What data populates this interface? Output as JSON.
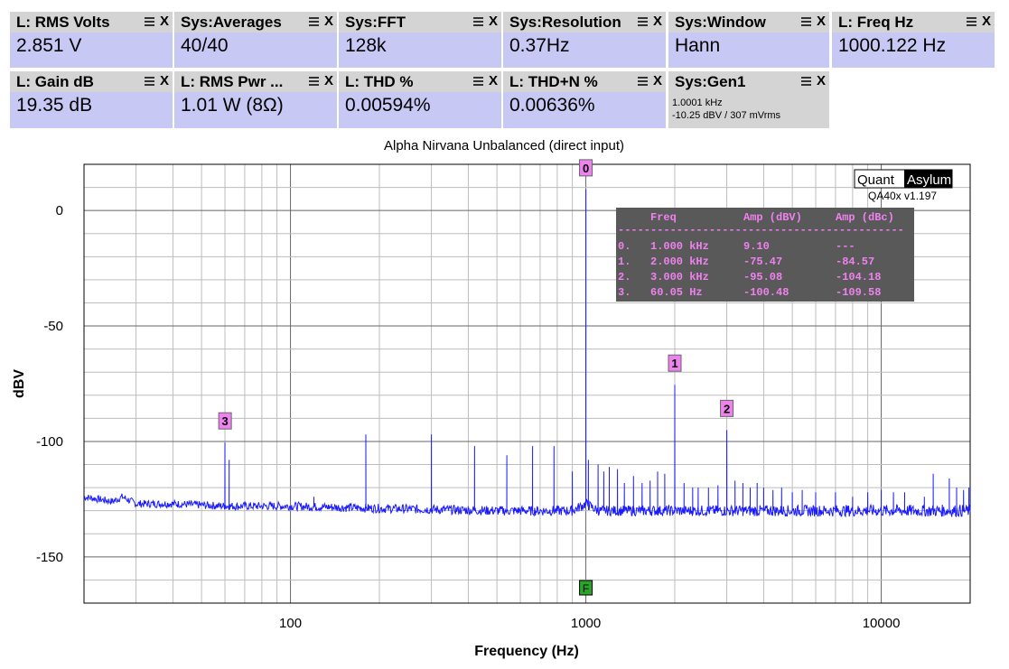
{
  "panels": [
    {
      "title": "L: RMS Volts",
      "value": "2.851 V"
    },
    {
      "title": "Sys:Averages",
      "value": "40/40"
    },
    {
      "title": "Sys:FFT",
      "value": "128k"
    },
    {
      "title": "Sys:Resolution",
      "value": "0.37Hz"
    },
    {
      "title": "Sys:Window",
      "value": "Hann"
    },
    {
      "title": "L: Freq Hz",
      "value": "1000.122 Hz"
    },
    {
      "title": "L: Gain dB",
      "value": "19.35 dB"
    },
    {
      "title": "L: RMS Pwr ...",
      "value": "1.01 W (8Ω)"
    },
    {
      "title": "L: THD %",
      "value": "0.00594%"
    },
    {
      "title": "L: THD+N %",
      "value": "0.00636%"
    },
    {
      "title": "Sys:Gen1",
      "line1": "1.0001 kHz",
      "line2": "-10.25 dBV  / 307 mVrms"
    }
  ],
  "panel_menu_icon": "hamburger-icon",
  "panel_close_icon": "close-icon",
  "panel_close_label": "X",
  "brand": {
    "left": "Quant",
    "right": "Asylum",
    "version": "QA40x v1.197"
  },
  "colors": {
    "trace": "#1a1aff",
    "marker": "#ee82ee",
    "panel_value": "#c8c8f5",
    "panel_header": "#d4d4d4",
    "table_bg": "#595959"
  },
  "chart_data": {
    "type": "line",
    "title": "Alpha Nirvana Unbalanced (direct input)",
    "xlabel": "Frequency (Hz)",
    "ylabel": "dBV",
    "xscale": "log",
    "xlim": [
      20,
      20000
    ],
    "ylim": [
      -170,
      20
    ],
    "xticks": [
      {
        "v": 100,
        "label": "100"
      },
      {
        "v": 1000,
        "label": "1000"
      },
      {
        "v": 10000,
        "label": "10000"
      }
    ],
    "yticks": [
      {
        "v": 0,
        "label": "0"
      },
      {
        "v": -50,
        "label": "-50"
      },
      {
        "v": -100,
        "label": "-100"
      },
      {
        "v": -150,
        "label": "-150"
      }
    ],
    "grid": true,
    "noise_floor": [
      [
        20,
        -124
      ],
      [
        25,
        -126
      ],
      [
        27,
        -124
      ],
      [
        30,
        -127
      ],
      [
        40,
        -127
      ],
      [
        60,
        -128
      ],
      [
        100,
        -128
      ],
      [
        200,
        -129
      ],
      [
        500,
        -130
      ],
      [
        900,
        -130
      ],
      [
        1000,
        -127
      ],
      [
        1100,
        -130
      ],
      [
        2000,
        -130
      ],
      [
        5000,
        -130
      ],
      [
        10000,
        -130
      ],
      [
        20000,
        -130
      ]
    ],
    "spurs": [
      [
        60,
        -100.5
      ],
      [
        62,
        -108
      ],
      [
        120,
        -124
      ],
      [
        180,
        -97
      ],
      [
        300,
        -97
      ],
      [
        420,
        -102
      ],
      [
        540,
        -106
      ],
      [
        660,
        -102
      ],
      [
        780,
        -102
      ],
      [
        900,
        -113
      ],
      [
        1000,
        9.1
      ],
      [
        1020,
        -108
      ],
      [
        1100,
        -110
      ],
      [
        1150,
        -113
      ],
      [
        1200,
        -111
      ],
      [
        1280,
        -112
      ],
      [
        1350,
        -118
      ],
      [
        1450,
        -115
      ],
      [
        1550,
        -118
      ],
      [
        1650,
        -117
      ],
      [
        1750,
        -113
      ],
      [
        1850,
        -114
      ],
      [
        2000,
        -75.47
      ],
      [
        2150,
        -118
      ],
      [
        2300,
        -120
      ],
      [
        2400,
        -120
      ],
      [
        2600,
        -120
      ],
      [
        2800,
        -119
      ],
      [
        3000,
        -95.08
      ],
      [
        3200,
        -117
      ],
      [
        3400,
        -118
      ],
      [
        3600,
        -120
      ],
      [
        3800,
        -118
      ],
      [
        4000,
        -120
      ],
      [
        4300,
        -121
      ],
      [
        4600,
        -120
      ],
      [
        5000,
        -122
      ],
      [
        5400,
        -121
      ],
      [
        6000,
        -122
      ],
      [
        7000,
        -122
      ],
      [
        8000,
        -124
      ],
      [
        9000,
        -122
      ],
      [
        10000,
        -121
      ],
      [
        11000,
        -122
      ],
      [
        12000,
        -122
      ],
      [
        14000,
        -124
      ],
      [
        15000,
        -114
      ],
      [
        17000,
        -116
      ],
      [
        18000,
        -120
      ],
      [
        19000,
        -121
      ],
      [
        19800,
        -120
      ]
    ],
    "markers": [
      {
        "id": "0",
        "x": 1000,
        "y": 9.1
      },
      {
        "id": "1",
        "x": 2000,
        "y": -75.47
      },
      {
        "id": "2",
        "x": 3000,
        "y": -95.08
      },
      {
        "id": "3",
        "x": 60.05,
        "y": -100.48
      }
    ],
    "fundamental_marker": {
      "label": "F",
      "x": 1000
    },
    "table": {
      "headers": [
        "Freq",
        "Amp (dBV)",
        "Amp (dBc)"
      ],
      "divider": "--------------------------------------------",
      "rows": [
        [
          "0.",
          "1.000 kHz",
          "9.10",
          "---"
        ],
        [
          "1.",
          "2.000 kHz",
          "-75.47",
          "-84.57"
        ],
        [
          "2.",
          "3.000 kHz",
          "-95.08",
          "-104.18"
        ],
        [
          "3.",
          "60.05 Hz",
          "-100.48",
          "-109.58"
        ]
      ]
    }
  }
}
